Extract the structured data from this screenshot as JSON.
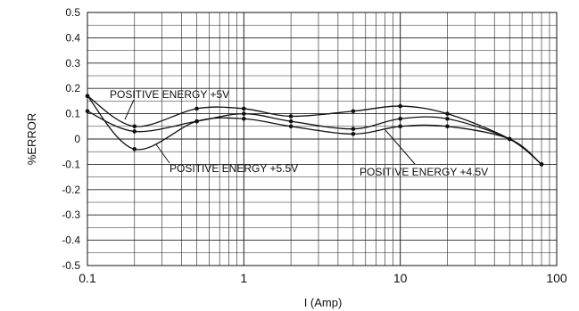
{
  "chart_data": {
    "type": "line",
    "title": "",
    "xlabel": "I (Amp)",
    "ylabel": "%ERROR",
    "x_scale": "log",
    "xlim": [
      0.1,
      100
    ],
    "ylim": [
      -0.5,
      0.5
    ],
    "x_ticks": [
      "0.1",
      "1",
      "10",
      "100"
    ],
    "y_ticks": [
      "0.5",
      "0.4",
      "0.3",
      "0.2",
      "0.1",
      "0",
      "-0.1",
      "-0.2",
      "-0.3",
      "-0.4",
      "-0.5"
    ],
    "grid": true,
    "legend": "none",
    "series": [
      {
        "name": "POSITIVE ENERGY +5V",
        "x": [
          0.1,
          0.2,
          0.5,
          1,
          2,
          5,
          10,
          20,
          50,
          80
        ],
        "y": [
          0.17,
          0.05,
          0.12,
          0.12,
          0.09,
          0.11,
          0.13,
          0.1,
          0.0,
          -0.1
        ]
      },
      {
        "name": "POSITIVE ENERGY +5.5V",
        "x": [
          0.1,
          0.2,
          0.5,
          1,
          2,
          5,
          10,
          20,
          50,
          80
        ],
        "y": [
          0.17,
          -0.04,
          0.07,
          0.08,
          0.05,
          0.02,
          0.05,
          0.05,
          0.0,
          -0.1
        ]
      },
      {
        "name": "POSITIVE ENERGY +4.5V",
        "x": [
          0.1,
          0.2,
          0.5,
          1,
          2,
          5,
          10,
          20,
          50,
          80
        ],
        "y": [
          0.11,
          0.03,
          0.07,
          0.1,
          0.07,
          0.04,
          0.08,
          0.08,
          0.0,
          -0.1
        ]
      }
    ],
    "annotations": [
      {
        "text": "POSITIVE ENERGY +5V"
      },
      {
        "text": "POSITIVE ENERGY +5.5V"
      },
      {
        "text": "POSITIVE ENERGY +4.5V"
      }
    ]
  }
}
